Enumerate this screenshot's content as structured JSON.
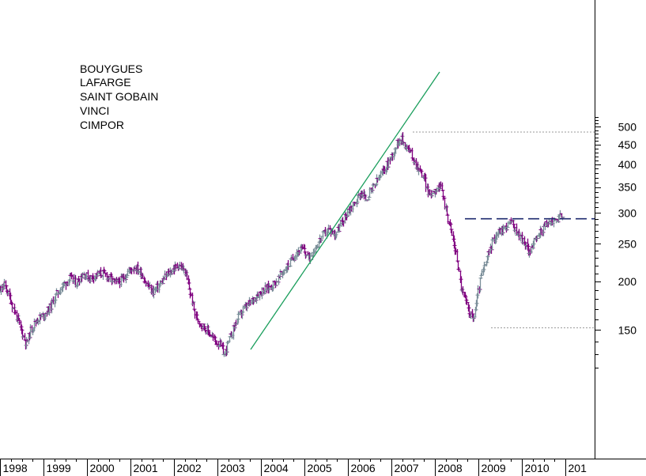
{
  "chart_data": {
    "type": "ohlc",
    "scale": "log",
    "ylim": [
      120,
      530
    ],
    "y_ticks": [
      "500",
      "450",
      "400",
      "350",
      "300",
      "250",
      "200",
      "150"
    ],
    "x_labels": [
      "1998",
      "1999",
      "2000",
      "2001",
      "2002",
      "2003",
      "2004",
      "2005",
      "2006",
      "2007",
      "2008",
      "2009",
      "2010",
      "201"
    ],
    "legend_items": [
      "BOUYGUES",
      "LAFARGE",
      "SAINT GOBAIN",
      "VINCI",
      "CIMPOR"
    ],
    "colors": {
      "up": "#7a8e99",
      "down": "#800080",
      "trend": "#1a9e5c",
      "resistance": "#1e2a6e",
      "reference": "#999999"
    },
    "anchors": [
      [
        1997.75,
        155
      ],
      [
        1997.85,
        170
      ],
      [
        1997.95,
        186
      ],
      [
        1998.1,
        196
      ],
      [
        1998.2,
        184
      ],
      [
        1998.35,
        165
      ],
      [
        1998.5,
        148
      ],
      [
        1998.6,
        138
      ],
      [
        1998.7,
        150
      ],
      [
        1998.85,
        160
      ],
      [
        1999.0,
        164
      ],
      [
        1999.15,
        172
      ],
      [
        1999.3,
        186
      ],
      [
        1999.45,
        196
      ],
      [
        1999.6,
        204
      ],
      [
        1999.75,
        198
      ],
      [
        1999.9,
        210
      ],
      [
        2000.05,
        204
      ],
      [
        2000.2,
        208
      ],
      [
        2000.35,
        210
      ],
      [
        2000.5,
        205
      ],
      [
        2000.65,
        198
      ],
      [
        2000.8,
        202
      ],
      [
        2000.95,
        213
      ],
      [
        2001.1,
        218
      ],
      [
        2001.25,
        210
      ],
      [
        2001.35,
        198
      ],
      [
        2001.5,
        188
      ],
      [
        2001.65,
        195
      ],
      [
        2001.8,
        206
      ],
      [
        2001.95,
        214
      ],
      [
        2002.1,
        221
      ],
      [
        2002.25,
        212
      ],
      [
        2002.4,
        180
      ],
      [
        2002.5,
        162
      ],
      [
        2002.65,
        154
      ],
      [
        2002.8,
        148
      ],
      [
        2002.95,
        140
      ],
      [
        2003.05,
        138
      ],
      [
        2003.15,
        130
      ],
      [
        2003.25,
        140
      ],
      [
        2003.35,
        150
      ],
      [
        2003.45,
        160
      ],
      [
        2003.6,
        170
      ],
      [
        2003.75,
        176
      ],
      [
        2003.9,
        185
      ],
      [
        2004.05,
        190
      ],
      [
        2004.2,
        194
      ],
      [
        2004.35,
        200
      ],
      [
        2004.5,
        212
      ],
      [
        2004.65,
        222
      ],
      [
        2004.8,
        238
      ],
      [
        2004.95,
        242
      ],
      [
        2005.1,
        230
      ],
      [
        2005.25,
        245
      ],
      [
        2005.4,
        262
      ],
      [
        2005.55,
        272
      ],
      [
        2005.7,
        265
      ],
      [
        2005.85,
        282
      ],
      [
        2006.0,
        305
      ],
      [
        2006.15,
        318
      ],
      [
        2006.3,
        340
      ],
      [
        2006.4,
        325
      ],
      [
        2006.55,
        345
      ],
      [
        2006.7,
        368
      ],
      [
        2006.85,
        392
      ],
      [
        2007.0,
        420
      ],
      [
        2007.1,
        448
      ],
      [
        2007.2,
        470
      ],
      [
        2007.3,
        452
      ],
      [
        2007.45,
        425
      ],
      [
        2007.55,
        402
      ],
      [
        2007.65,
        385
      ],
      [
        2007.75,
        368
      ],
      [
        2007.85,
        335
      ],
      [
        2007.95,
        340
      ],
      [
        2008.05,
        352
      ],
      [
        2008.15,
        345
      ],
      [
        2008.3,
        290
      ],
      [
        2008.4,
        260
      ],
      [
        2008.5,
        230
      ],
      [
        2008.6,
        192
      ],
      [
        2008.7,
        178
      ],
      [
        2008.8,
        166
      ],
      [
        2008.88,
        160
      ],
      [
        2008.95,
        178
      ],
      [
        2009.05,
        205
      ],
      [
        2009.15,
        220
      ],
      [
        2009.25,
        240
      ],
      [
        2009.35,
        258
      ],
      [
        2009.45,
        268
      ],
      [
        2009.55,
        272
      ],
      [
        2009.65,
        278
      ],
      [
        2009.75,
        285
      ],
      [
        2009.85,
        270
      ],
      [
        2009.95,
        262
      ],
      [
        2010.05,
        252
      ],
      [
        2010.15,
        240
      ],
      [
        2010.25,
        248
      ],
      [
        2010.35,
        260
      ],
      [
        2010.45,
        272
      ],
      [
        2010.55,
        280
      ],
      [
        2010.65,
        285
      ],
      [
        2010.75,
        288
      ],
      [
        2010.85,
        292
      ],
      [
        2010.93,
        296
      ]
    ]
  }
}
